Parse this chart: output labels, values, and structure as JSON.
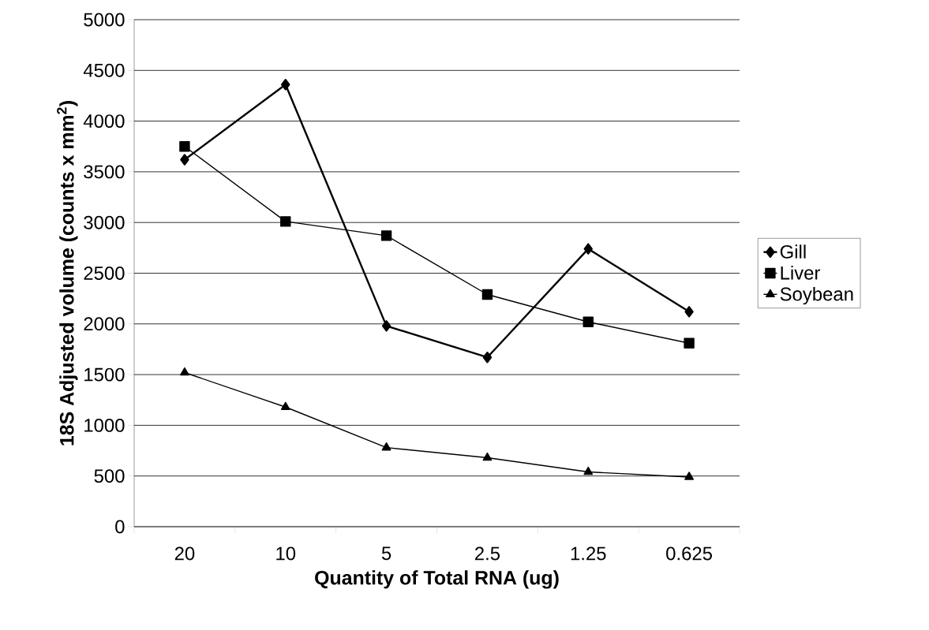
{
  "chart_data": {
    "type": "line",
    "xlabel": "Quantity of Total RNA (ug)",
    "ylabel": "18S Adjusted volume (counts x mm$^{2}$)",
    "categories": [
      "20",
      "10",
      "5",
      "2.5",
      "1.25",
      "0.625"
    ],
    "series": [
      {
        "name": "Gill",
        "color": "#000000",
        "marker": "diamond",
        "values": [
          3620,
          4360,
          1980,
          1670,
          2740,
          2120
        ]
      },
      {
        "name": "Liver",
        "color": "#000000",
        "marker": "square",
        "values": [
          3750,
          3010,
          2870,
          2290,
          2020,
          1810
        ]
      },
      {
        "name": "Soybean",
        "color": "#000000",
        "marker": "triangle",
        "values": [
          1520,
          1180,
          780,
          680,
          540,
          490
        ]
      }
    ],
    "ylim": [
      0,
      5000
    ],
    "yticks": [
      0,
      500,
      1000,
      1500,
      2000,
      2500,
      3000,
      3500,
      4000,
      4500,
      5000
    ],
    "grid": "y",
    "legend": "right",
    "line_style": "solid"
  }
}
